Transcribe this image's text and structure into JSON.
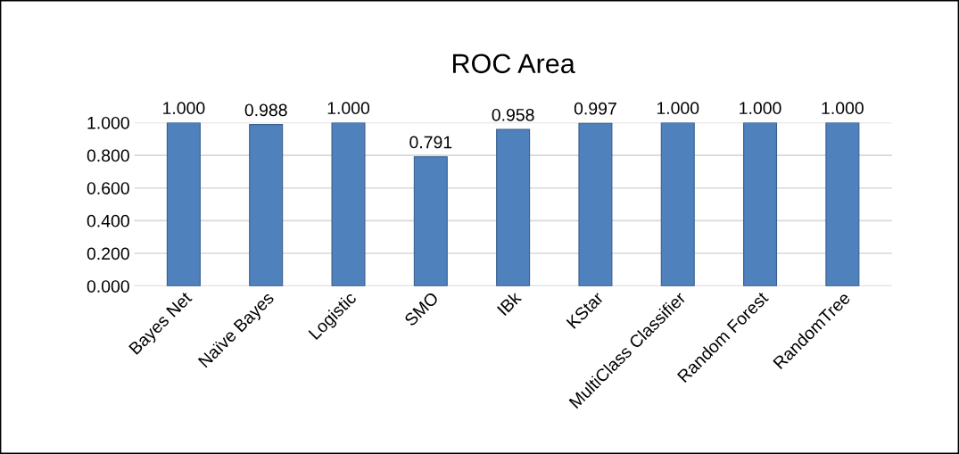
{
  "chart_data": {
    "type": "bar",
    "title": "ROC Area",
    "categories": [
      "Bayes Net",
      "Naïve Bayes",
      "Logistic",
      "SMO",
      "IBk",
      "KStar",
      "MultiClass Classifier",
      "Random Forest",
      "RandomTree"
    ],
    "values": [
      1.0,
      0.988,
      1.0,
      0.791,
      0.958,
      0.997,
      1.0,
      1.0,
      1.0
    ],
    "value_labels": [
      "1.000",
      "0.988",
      "1.000",
      "0.791",
      "0.958",
      "0.997",
      "1.000",
      "1.000",
      "1.000"
    ],
    "color": "#4f81bd",
    "ylim": [
      0,
      1.0
    ],
    "yticks": [
      {
        "value": 0,
        "label": "0.000"
      },
      {
        "value": 0.2,
        "label": "0.200"
      },
      {
        "value": 0.4,
        "label": "0.400"
      },
      {
        "value": 0.6,
        "label": "0.600"
      },
      {
        "value": 0.8,
        "label": "0.800"
      },
      {
        "value": 1.0,
        "label": "1.000"
      }
    ],
    "grid": "y"
  }
}
